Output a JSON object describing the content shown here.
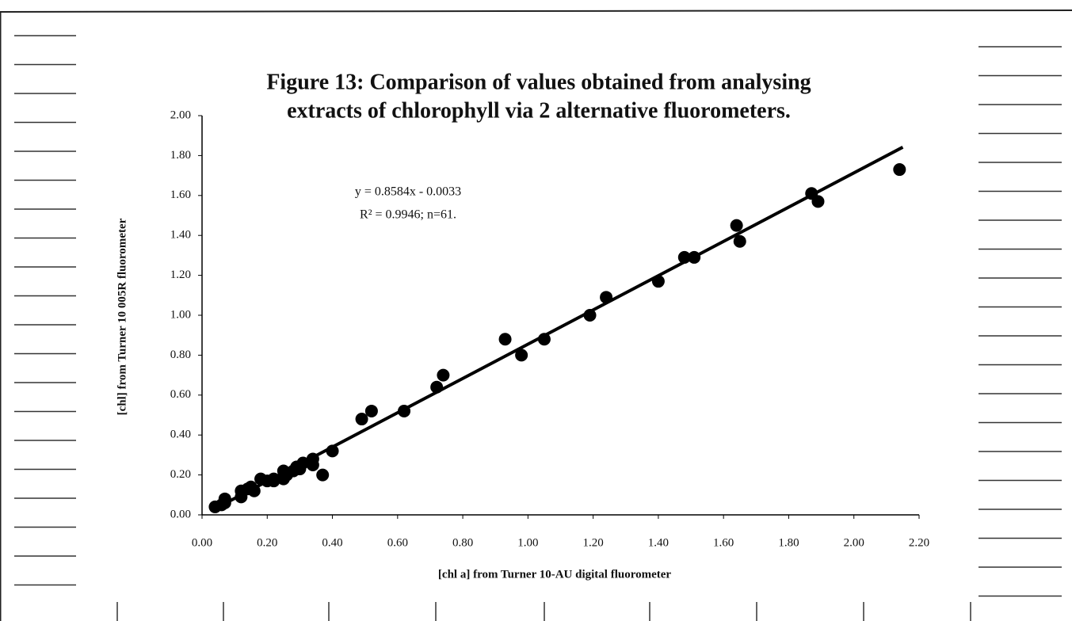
{
  "chart_data": {
    "type": "scatter",
    "title": [
      "Figure 13: Comparison of values obtained from analysing",
      "extracts of chlorophyll via 2 alternative fluorometers."
    ],
    "x_label": "[chl a] from Turner 10-AU digital fluorometer",
    "y_label": "[chl] from Turner 10 005R fluorometer",
    "annotations": [
      "y = 0.8584x - 0.0033",
      "R² = 0.9946; n=61."
    ],
    "color": "#000000",
    "x": [
      0.04,
      0.06,
      0.07,
      0.07,
      0.12,
      0.12,
      0.14,
      0.15,
      0.16,
      0.18,
      0.2,
      0.22,
      0.22,
      0.25,
      0.25,
      0.26,
      0.28,
      0.29,
      0.3,
      0.31,
      0.34,
      0.34,
      0.37,
      0.4,
      0.49,
      0.52,
      0.62,
      0.72,
      0.74,
      0.93,
      0.98,
      1.05,
      1.19,
      1.24,
      1.4,
      1.48,
      1.51,
      1.64,
      1.65,
      1.87,
      1.89,
      2.14
    ],
    "values": [
      0.04,
      0.05,
      0.08,
      0.06,
      0.12,
      0.09,
      0.13,
      0.14,
      0.12,
      0.18,
      0.17,
      0.18,
      0.17,
      0.22,
      0.18,
      0.2,
      0.22,
      0.24,
      0.23,
      0.26,
      0.28,
      0.25,
      0.2,
      0.32,
      0.48,
      0.52,
      0.52,
      0.64,
      0.7,
      0.88,
      0.8,
      0.88,
      1.0,
      1.09,
      1.17,
      1.29,
      1.29,
      1.45,
      1.37,
      1.61,
      1.57,
      1.73
    ],
    "trendline": {
      "x": [
        0.04,
        2.15
      ],
      "values": [
        0.031,
        1.842
      ]
    },
    "xlim": [
      0,
      2.2
    ],
    "ylim": [
      0,
      2
    ],
    "xticks": [
      {
        "value": 0,
        "label": "0.00"
      },
      {
        "value": 0.2,
        "label": "0.20"
      },
      {
        "value": 0.4,
        "label": "0.40"
      },
      {
        "value": 0.6,
        "label": "0.60"
      },
      {
        "value": 0.8,
        "label": "0.80"
      },
      {
        "value": 1,
        "label": "1.00"
      },
      {
        "value": 1.2,
        "label": "1.20"
      },
      {
        "value": 1.4,
        "label": "1.40"
      },
      {
        "value": 1.6,
        "label": "1.60"
      },
      {
        "value": 1.8,
        "label": "1.80"
      },
      {
        "value": 2,
        "label": "2.00"
      },
      {
        "value": 2.2,
        "label": "2.20"
      }
    ],
    "yticks": [
      {
        "value": 0,
        "label": "0.00"
      },
      {
        "value": 0.2,
        "label": "0.20"
      },
      {
        "value": 0.4,
        "label": "0.40"
      },
      {
        "value": 0.6,
        "label": "0.60"
      },
      {
        "value": 0.8,
        "label": "0.80"
      },
      {
        "value": 1,
        "label": "1.00"
      },
      {
        "value": 1.2,
        "label": "1.20"
      },
      {
        "value": 1.4,
        "label": "1.40"
      },
      {
        "value": 1.6,
        "label": "1.60"
      },
      {
        "value": 1.8,
        "label": "1.80"
      },
      {
        "value": 2,
        "label": "2.00"
      }
    ],
    "grid": false
  }
}
